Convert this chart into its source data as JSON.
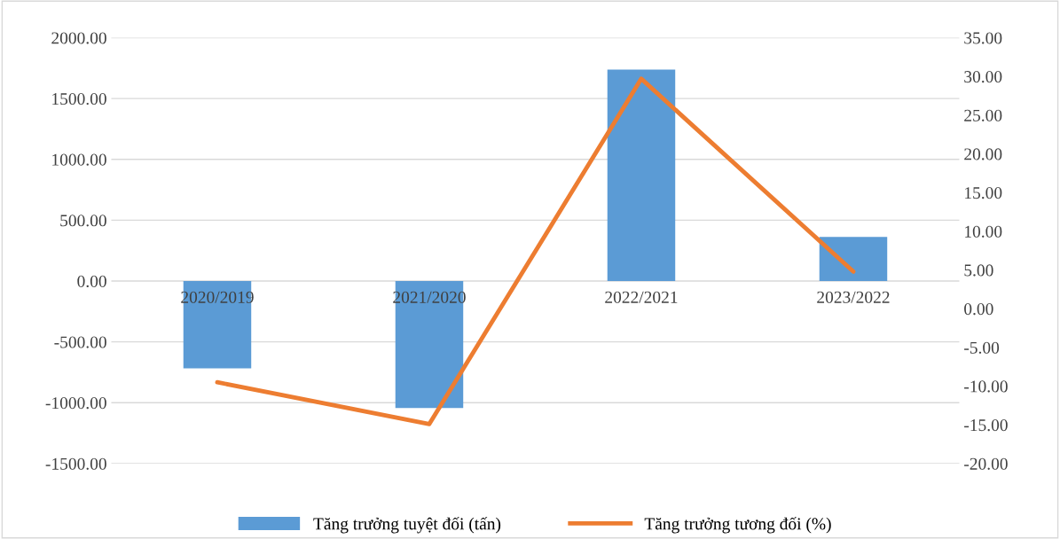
{
  "chart_data": {
    "type": "bar",
    "categories": [
      "2020/2019",
      "2021/2020",
      "2022/2021",
      "2023/2022"
    ],
    "series": [
      {
        "name": "Tăng trưởng tuyệt đối (tấn)",
        "color": "#5b9bd5",
        "values": [
          -717,
          -1043,
          1739,
          362
        ]
      },
      {
        "name": "Tăng trưởng tương đối (%)",
        "type": "line",
        "axis": "y2",
        "color": "#ed7d31",
        "values": [
          -9.5,
          -14.9,
          29.7,
          4.8
        ]
      }
    ],
    "ylim": [
      -1500,
      2000
    ],
    "yticks": [
      {
        "value": -1500,
        "label": "-1500.00"
      },
      {
        "value": -1000,
        "label": "-1000.00"
      },
      {
        "value": -500,
        "label": "-500.00"
      },
      {
        "value": 0,
        "label": "0.00"
      },
      {
        "value": 500,
        "label": "500.00"
      },
      {
        "value": 1000,
        "label": "1000.00"
      },
      {
        "value": 1500,
        "label": "1500.00"
      },
      {
        "value": 2000,
        "label": "2000.00"
      }
    ],
    "y2lim": [
      -20,
      35
    ],
    "y2ticks": [
      {
        "value": -20,
        "label": "-20.00"
      },
      {
        "value": -15,
        "label": "-15.00"
      },
      {
        "value": -10,
        "label": "-10.00"
      },
      {
        "value": -5,
        "label": "-5.00"
      },
      {
        "value": 0,
        "label": "0.00"
      },
      {
        "value": 5,
        "label": "5.00"
      },
      {
        "value": 10,
        "label": "10.00"
      },
      {
        "value": 15,
        "label": "15.00"
      },
      {
        "value": 20,
        "label": "20.00"
      },
      {
        "value": 25,
        "label": "25.00"
      },
      {
        "value": 30,
        "label": "30.00"
      },
      {
        "value": 35,
        "label": "35.00"
      }
    ],
    "grid": "y",
    "legend": "bottom",
    "marker": "none"
  }
}
